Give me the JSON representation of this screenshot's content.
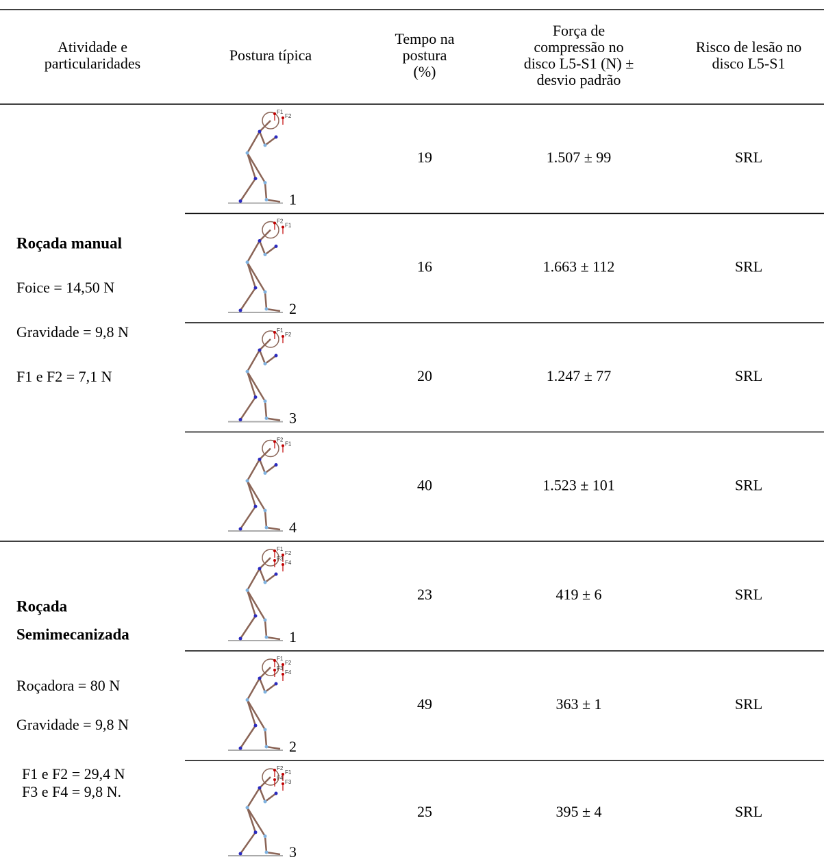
{
  "table": {
    "header": [
      [
        "Atividade e",
        "particularidades"
      ],
      [
        "Postura típica"
      ],
      [
        "Tempo na",
        "postura",
        "(%)"
      ],
      [
        "Força de",
        "compressão no",
        "disco L5-S1 (N) ±",
        "desvio padrão"
      ],
      [
        "Risco de lesão no",
        "disco L5-S1"
      ]
    ],
    "groups": [
      {
        "title": [
          "Roçada manual"
        ],
        "notes": [
          "Foice = 14,50 N",
          "Gravidade = 9,8 N",
          "F1 e F2 = 7,1 N"
        ],
        "rows": [
          {
            "posture": "1",
            "force_labels": [
              "F1",
              "F2"
            ],
            "time": 19,
            "force": "1.507 ± 99",
            "risk": "SRL"
          },
          {
            "posture": "2",
            "force_labels": [
              "F2",
              "F1"
            ],
            "time": 16,
            "force": "1.663 ± 112",
            "risk": "SRL"
          },
          {
            "posture": "3",
            "force_labels": [
              "F1",
              "F2"
            ],
            "time": 20,
            "force": "1.247 ± 77",
            "risk": "SRL"
          },
          {
            "posture": "4",
            "force_labels": [
              "F2",
              "F1"
            ],
            "time": 40,
            "force": "1.523 ± 101",
            "risk": "SRL"
          }
        ]
      },
      {
        "title": [
          "Roçada",
          "Semimecanizada"
        ],
        "notes": [
          "Roçadora = 80 N",
          "Gravidade = 9,8 N",
          "F1 e F2 = 29,4 N",
          "F3 e F4 = 9,8 N."
        ],
        "rows": [
          {
            "posture": "1",
            "force_labels": [
              "F1",
              "F2",
              "F3",
              "F4"
            ],
            "time": 23,
            "force": "419 ± 6",
            "risk": "SRL"
          },
          {
            "posture": "2",
            "force_labels": [
              "F1",
              "F2",
              "F3",
              "F4"
            ],
            "time": 49,
            "force": "363 ± 1",
            "risk": "SRL"
          },
          {
            "posture": "3",
            "force_labels": [
              "F2",
              "F1",
              "F4",
              "F3"
            ],
            "time": 25,
            "force": "395 ± 4",
            "risk": "SRL"
          }
        ]
      }
    ]
  }
}
